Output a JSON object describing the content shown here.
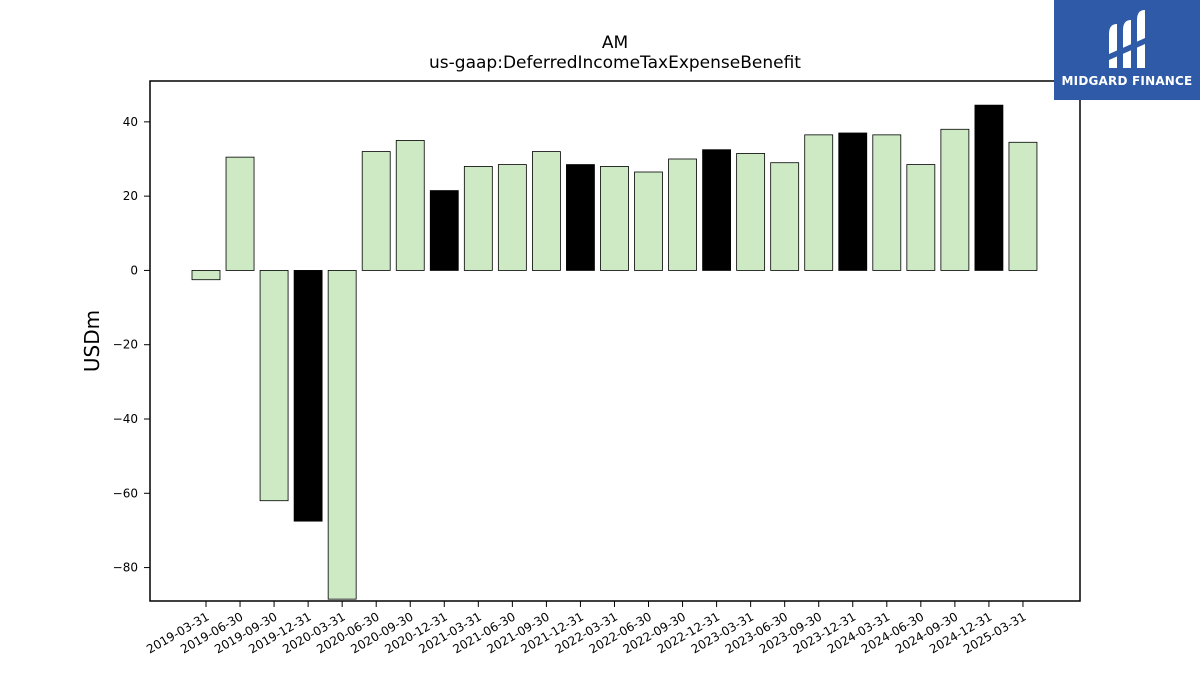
{
  "chart_data": {
    "type": "bar",
    "title": "AM",
    "subtitle": "us-gaap:DeferredIncomeTaxExpenseBenefit",
    "xlabel": "",
    "ylabel": "USDm",
    "ylim": [
      -89,
      51
    ],
    "yticks": [
      -80,
      -60,
      -40,
      -20,
      0,
      20,
      40
    ],
    "grid": false,
    "categories": [
      "2019-03-31",
      "2019-06-30",
      "2019-09-30",
      "2019-12-31",
      "2020-03-31",
      "2020-06-30",
      "2020-09-30",
      "2020-12-31",
      "2021-03-31",
      "2021-06-30",
      "2021-09-30",
      "2021-12-31",
      "2022-03-31",
      "2022-06-30",
      "2022-09-30",
      "2022-12-31",
      "2023-03-31",
      "2023-06-30",
      "2023-09-30",
      "2023-12-31",
      "2024-03-31",
      "2024-06-30",
      "2024-09-30",
      "2024-12-31",
      "2025-03-31"
    ],
    "values": [
      -2.5,
      30.5,
      -62,
      -67.5,
      -88.5,
      32,
      35,
      21.5,
      28,
      28.5,
      32,
      28.5,
      28,
      26.5,
      30,
      32.5,
      31.5,
      29,
      36.5,
      37,
      36.5,
      28.5,
      38,
      44.5,
      34.5
    ],
    "bar_colors": {
      "default": "#cdeac5",
      "q4": "#000000",
      "edge": "#000000"
    }
  },
  "logo": {
    "text": "MIDGARD FINANCE",
    "icon": "midgard-m-icon",
    "background": "#2e5aa8"
  }
}
